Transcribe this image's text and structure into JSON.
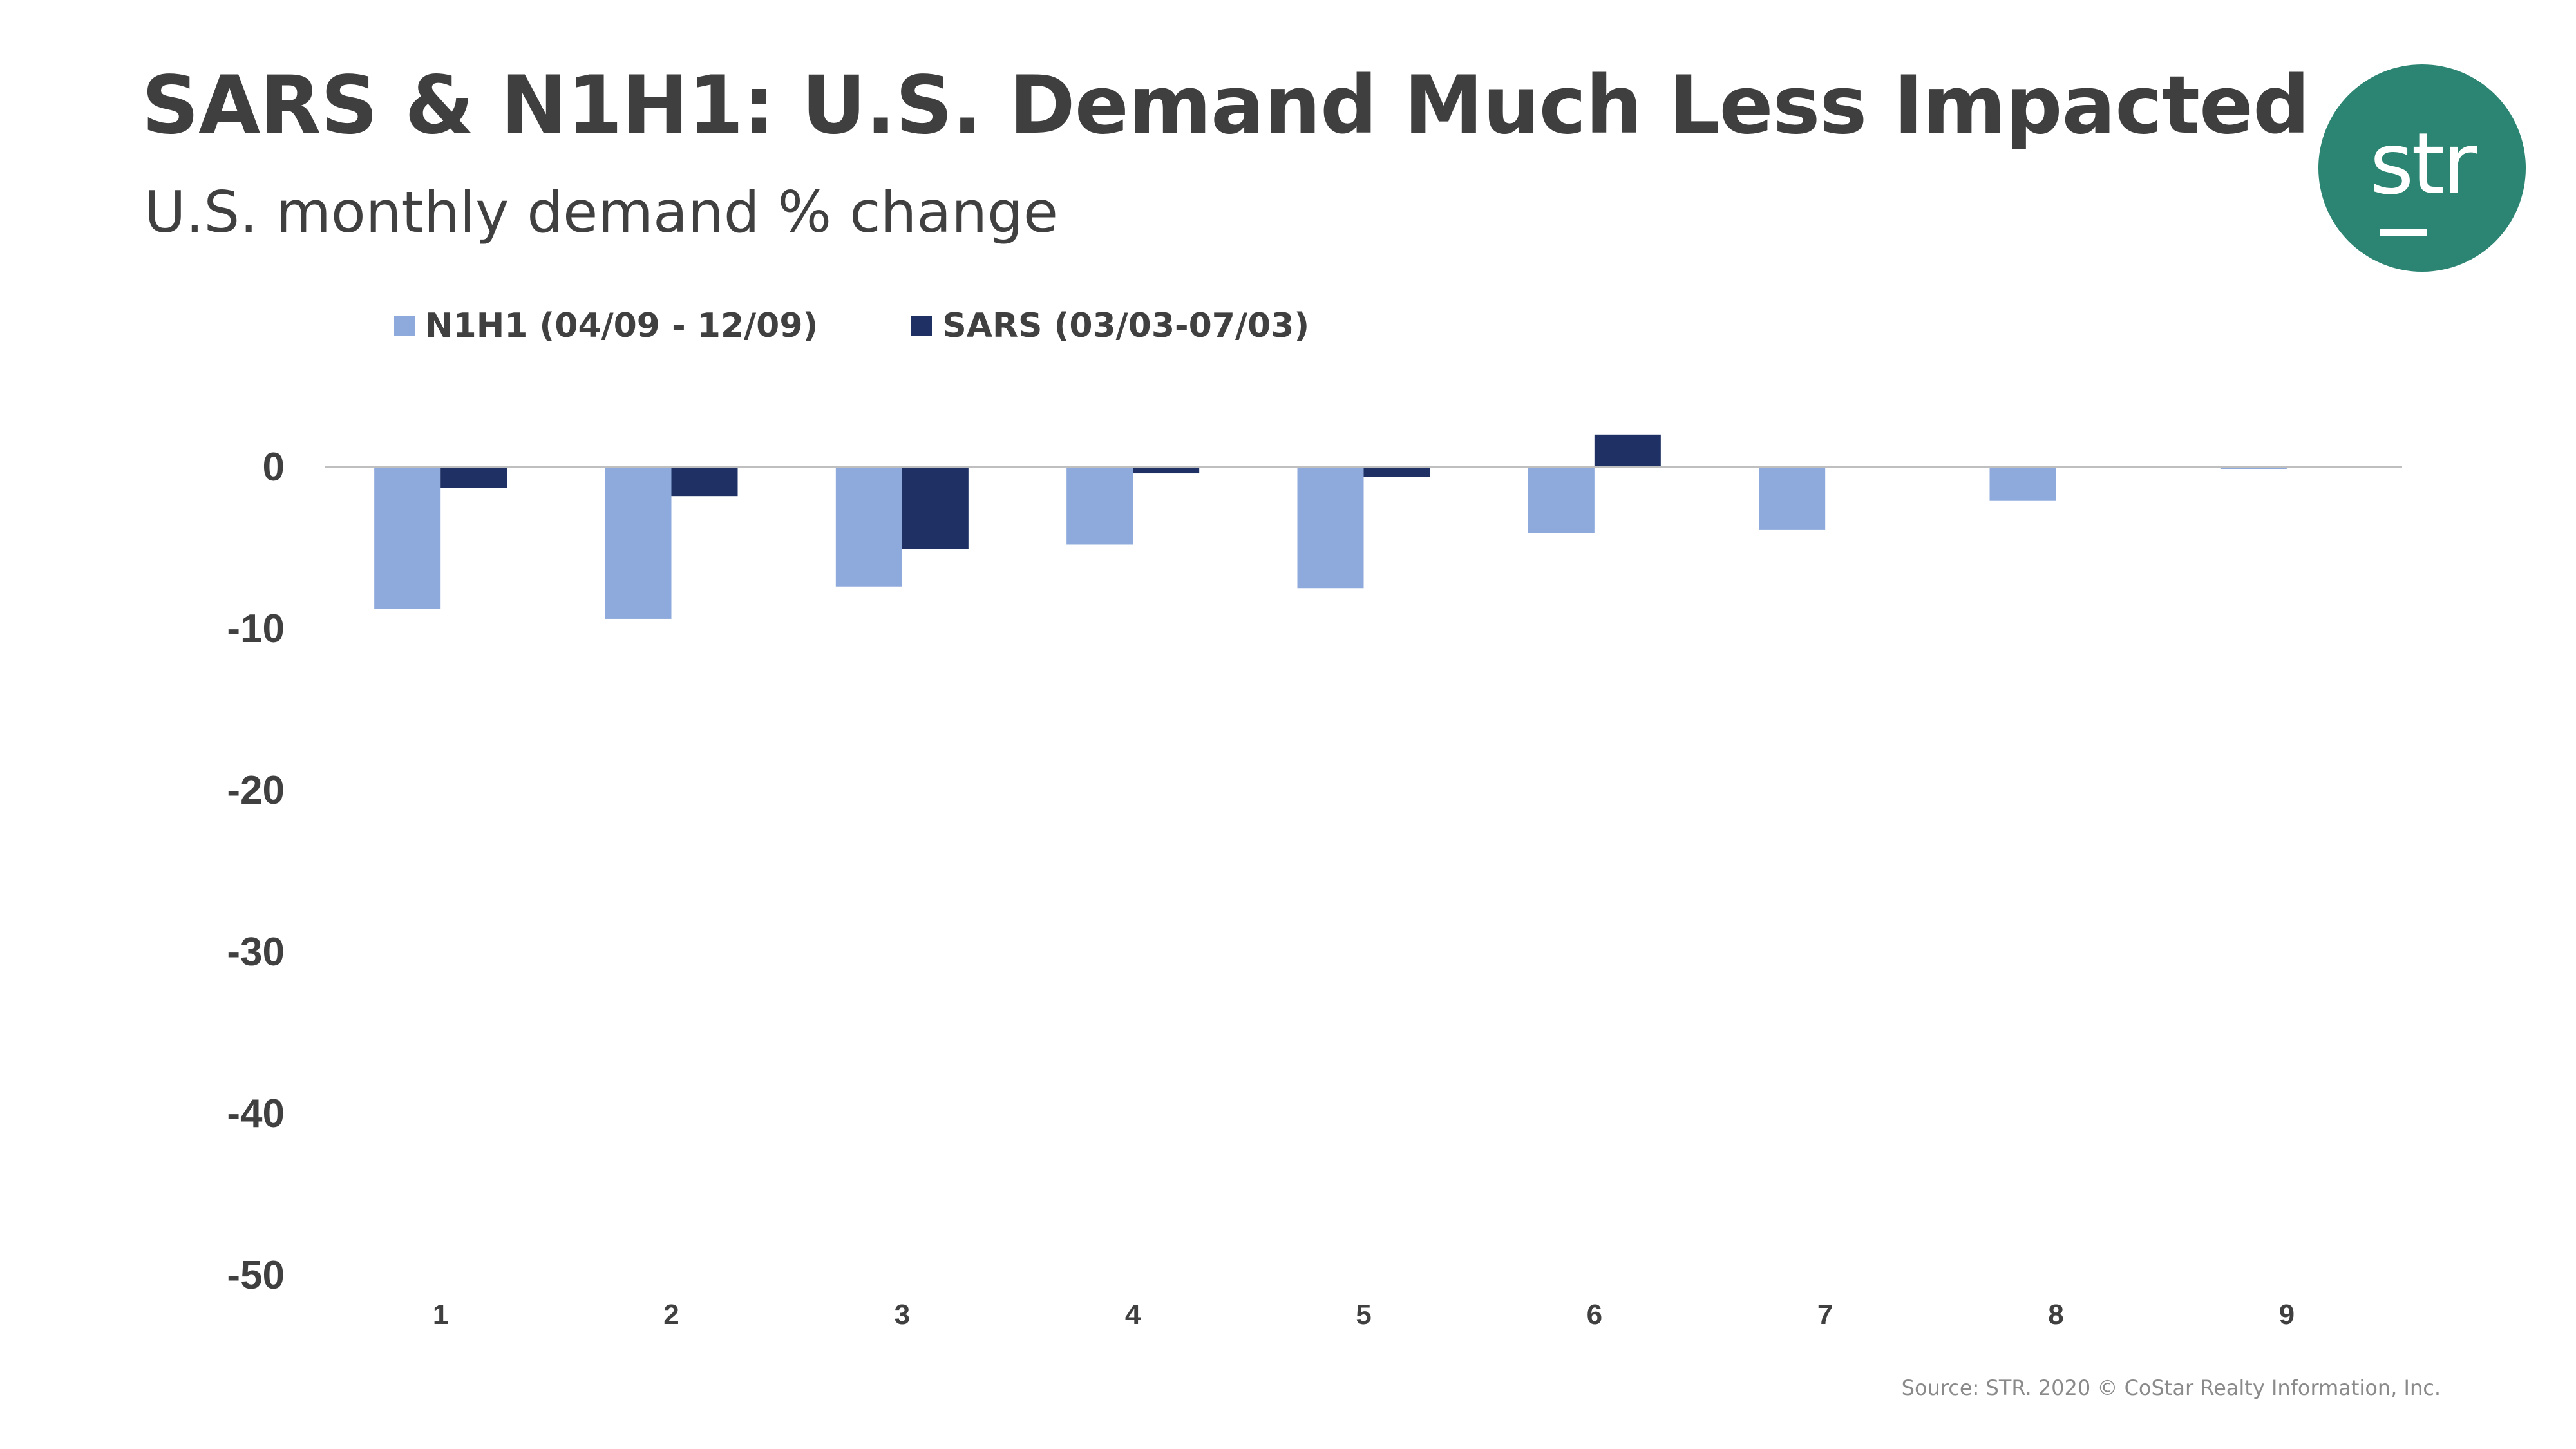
{
  "title": "SARS & N1H1: U.S. Demand Much Less Impacted",
  "subtitle": "U.S. monthly demand % change",
  "logo": {
    "text": "str",
    "color": "#2c8573"
  },
  "source": "Source: STR. 2020 © CoStar Realty Information, Inc.",
  "chart_data": {
    "type": "bar",
    "title": "SARS & N1H1: U.S. Demand Much Less Impacted",
    "subtitle": "U.S. monthly demand % change",
    "xlabel": "",
    "ylabel": "",
    "categories": [
      "1",
      "2",
      "3",
      "4",
      "5",
      "6",
      "7",
      "8",
      "9"
    ],
    "series": [
      {
        "name": "N1H1 (04/09 - 12/09)",
        "color": "#8ea9db",
        "values": [
          -8.8,
          -9.4,
          -7.4,
          -4.8,
          -7.5,
          -4.1,
          -3.9,
          -2.1,
          -0.1
        ]
      },
      {
        "name": "SARS (03/03-07/03)",
        "color": "#1f3164",
        "values": [
          -1.3,
          -1.8,
          -5.1,
          -0.4,
          -0.6,
          2.0,
          null,
          null,
          null
        ]
      }
    ],
    "yticks": [
      0,
      -10,
      -20,
      -30,
      -40,
      -50
    ],
    "ylim": [
      -50,
      2
    ],
    "grid": false,
    "legend": "top-left"
  }
}
